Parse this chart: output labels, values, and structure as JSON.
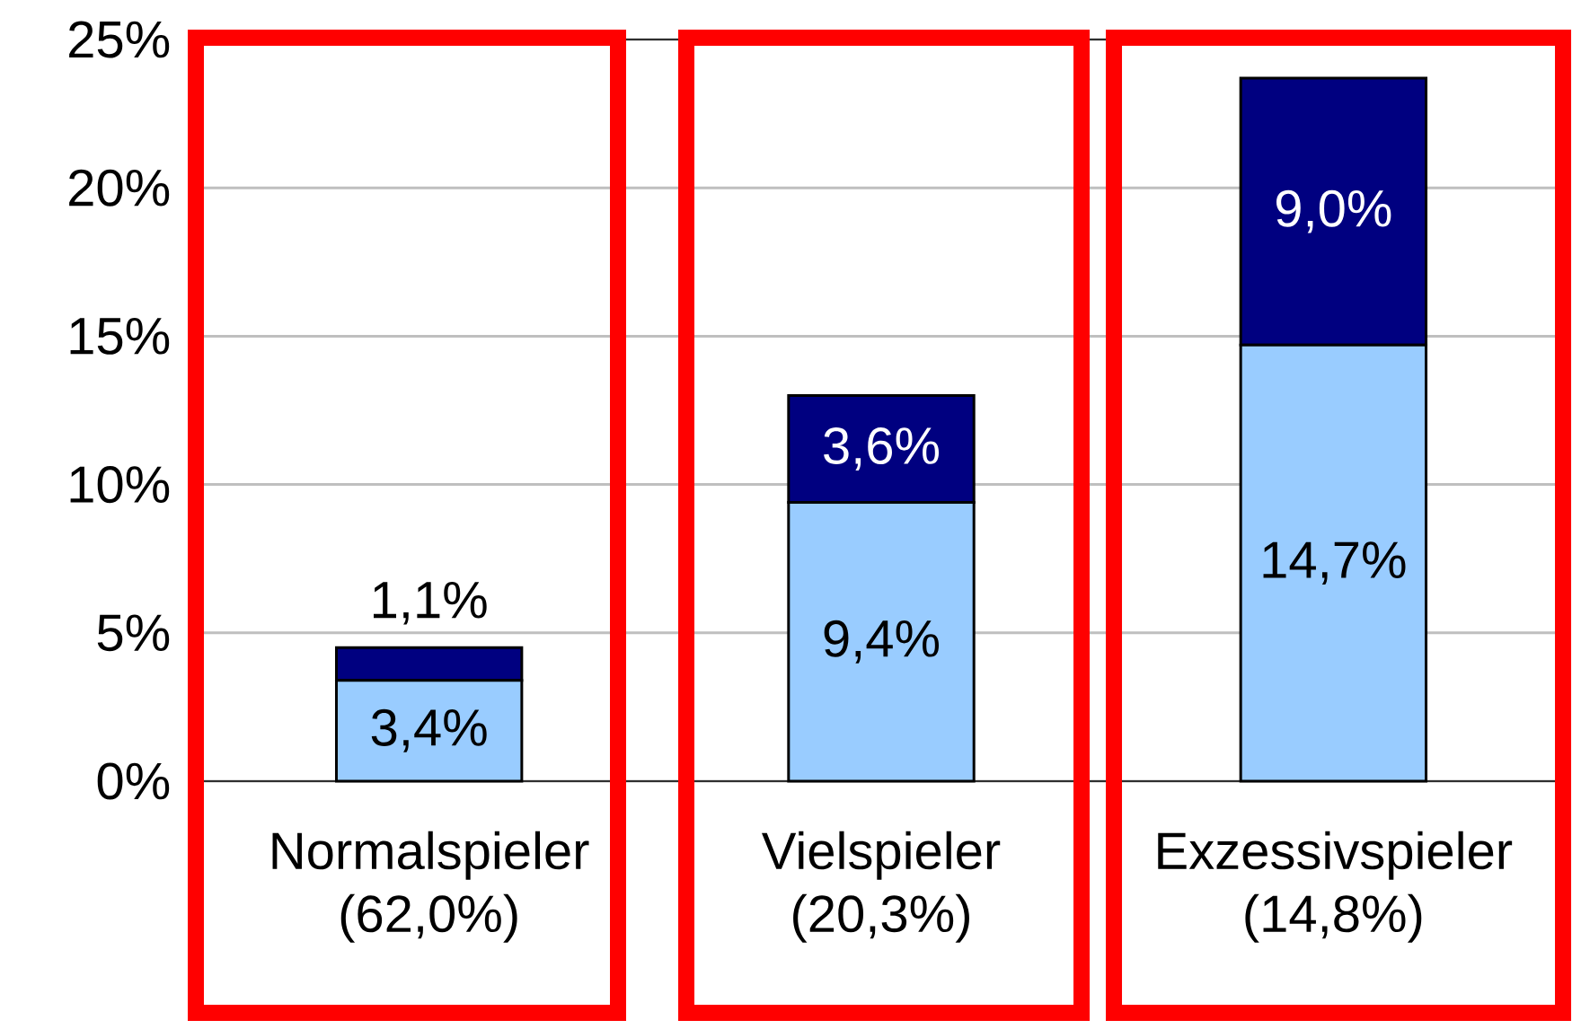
{
  "chart_data": {
    "type": "bar",
    "stacked": true,
    "categories": [
      "Normalspieler (62,0%)",
      "Vielspieler (20,3%)",
      "Exzessivspieler (14,8%)"
    ],
    "series": [
      {
        "color": "#99ccff",
        "values": [
          3.4,
          9.4,
          14.7
        ],
        "value_labels": [
          "3,4%",
          "9,4%",
          "14,7%"
        ]
      },
      {
        "color": "#000080",
        "values": [
          1.1,
          3.6,
          9.0
        ],
        "value_labels": [
          "1,1%",
          "3,6%",
          "9,0%"
        ]
      }
    ],
    "ylim": [
      0,
      25
    ],
    "yticks": [
      {
        "value": 0,
        "label": "0%"
      },
      {
        "value": 5,
        "label": "5%"
      },
      {
        "value": 10,
        "label": "10%"
      },
      {
        "value": 15,
        "label": "15%"
      },
      {
        "value": 20,
        "label": "20%"
      },
      {
        "value": 25,
        "label": "25%"
      }
    ],
    "grid": "y"
  }
}
